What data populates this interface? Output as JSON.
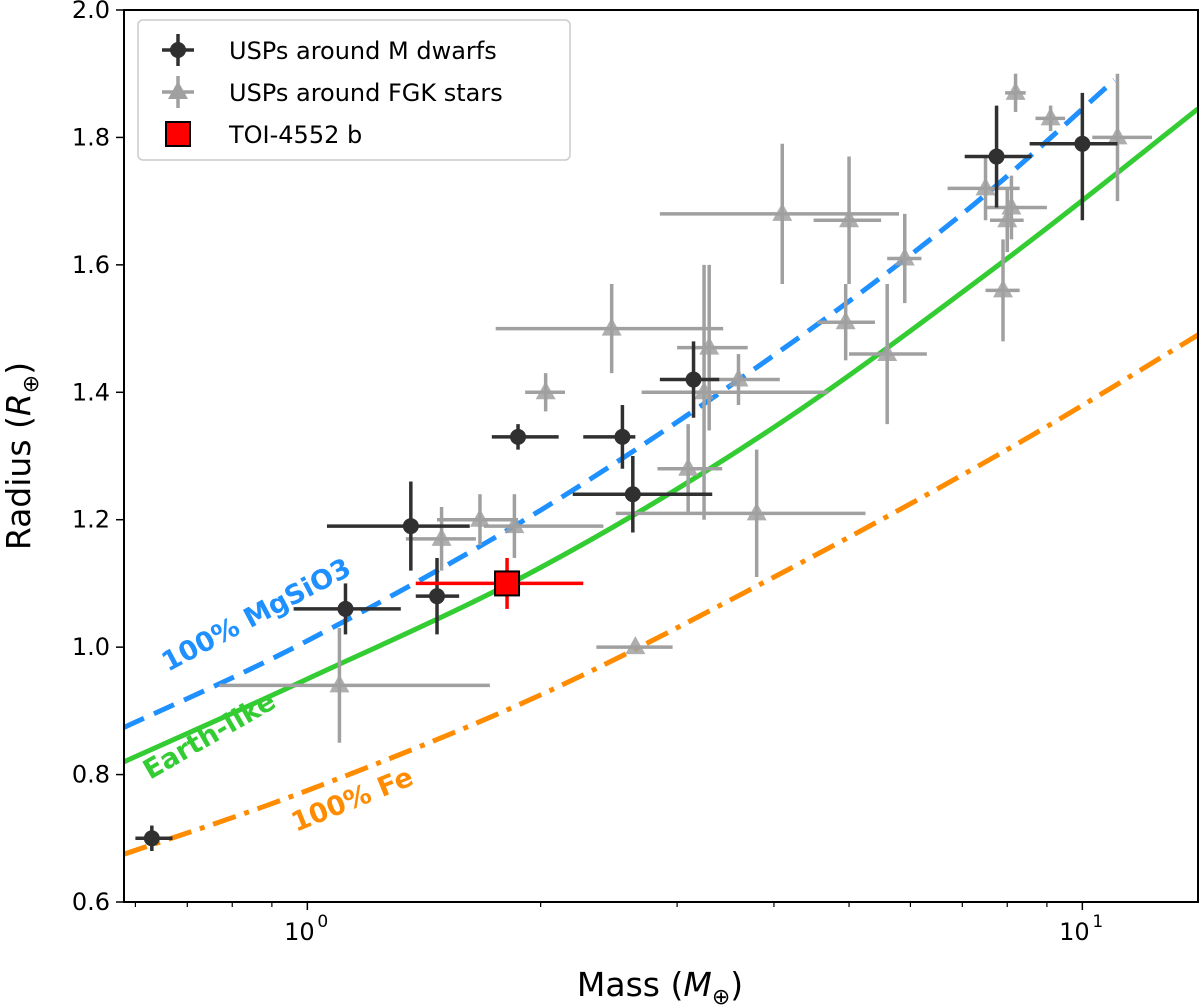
{
  "chart_data": {
    "type": "scatter",
    "title": "",
    "xlabel": "Mass",
    "xlabel_unit": "M",
    "ylabel": "Radius",
    "ylabel_unit": "R",
    "unit_subscript": "⊕",
    "xscale": "log",
    "xlim": [
      0.58,
      14.1
    ],
    "ylim": [
      0.6,
      2.0
    ],
    "x_ticks": [
      {
        "value": 1,
        "label_base": "10",
        "label_exp": "0"
      },
      {
        "value": 10,
        "label_base": "10",
        "label_exp": "1"
      }
    ],
    "y_ticks": [
      0.6,
      0.8,
      1.0,
      1.2,
      1.4,
      1.6,
      1.8,
      2.0
    ],
    "y_tick_labels": [
      "0.6",
      "0.8",
      "1.0",
      "1.2",
      "1.4",
      "1.6",
      "1.8",
      "2.0"
    ],
    "grid": false,
    "legend_position": "top-left",
    "legend": [
      {
        "label": "USPs around M dwarfs",
        "marker": "circle",
        "color": "#303030"
      },
      {
        "label": "USPs around FGK stars",
        "marker": "triangle",
        "color": "#a0a0a0"
      },
      {
        "label": "TOI-4552 b",
        "marker": "square",
        "color": "#ff0000"
      }
    ],
    "curves": [
      {
        "label": "100% MgSiO3",
        "color": "#1e90ff",
        "style": "dashed",
        "x": [
          0.58,
          1.0,
          2.0,
          4.0,
          7.0,
          11.0
        ],
        "y": [
          0.874,
          1.01,
          1.215,
          1.458,
          1.68,
          1.89
        ]
      },
      {
        "label": "Earth-like",
        "color": "#33cc33",
        "style": "solid",
        "x": [
          0.58,
          1.0,
          2.0,
          4.0,
          8.0,
          14.1
        ],
        "y": [
          0.82,
          0.95,
          1.125,
          1.345,
          1.61,
          1.845
        ]
      },
      {
        "label": "100% Fe",
        "color": "#ff8c00",
        "style": "dashdot",
        "x": [
          0.58,
          1.0,
          2.0,
          4.0,
          8.0,
          14.1
        ],
        "y": [
          0.675,
          0.775,
          0.925,
          1.11,
          1.31,
          1.49
        ]
      }
    ],
    "series": [
      {
        "name": "USPs around M dwarfs",
        "color": "#303030",
        "marker": "circle",
        "points": [
          {
            "x": 0.63,
            "y": 0.7,
            "xerr": [
              0.03,
              0.04
            ],
            "yerr": [
              0.02,
              0.02
            ]
          },
          {
            "x": 1.12,
            "y": 1.06,
            "xerr": [
              0.16,
              0.2
            ],
            "yerr": [
              0.04,
              0.04
            ]
          },
          {
            "x": 1.36,
            "y": 1.19,
            "xerr": [
              0.3,
              0.26
            ],
            "yerr": [
              0.07,
              0.07
            ]
          },
          {
            "x": 1.47,
            "y": 1.08,
            "xerr": [
              0.09,
              0.1
            ],
            "yerr": [
              0.06,
              0.06
            ]
          },
          {
            "x": 1.87,
            "y": 1.33,
            "xerr": [
              0.14,
              0.24
            ],
            "yerr": [
              0.02,
              0.02
            ]
          },
          {
            "x": 2.55,
            "y": 1.33,
            "xerr": [
              0.28,
              0.1
            ],
            "yerr": [
              0.05,
              0.05
            ]
          },
          {
            "x": 2.63,
            "y": 1.24,
            "xerr": [
              0.43,
              0.7
            ],
            "yerr": [
              0.06,
              0.06
            ]
          },
          {
            "x": 3.15,
            "y": 1.42,
            "xerr": [
              0.3,
              0.25
            ],
            "yerr": [
              0.06,
              0.06
            ]
          },
          {
            "x": 7.75,
            "y": 1.77,
            "xerr": [
              0.7,
              0.85
            ],
            "yerr": [
              0.08,
              0.08
            ]
          },
          {
            "x": 10.0,
            "y": 1.79,
            "xerr": [
              1.45,
              1.1
            ],
            "yerr": [
              0.12,
              0.08
            ]
          }
        ]
      },
      {
        "name": "USPs around FGK stars",
        "color": "#a0a0a0",
        "marker": "triangle",
        "points": [
          {
            "x": 1.1,
            "y": 0.94,
            "xerr": [
              0.33,
              0.62
            ],
            "yerr": [
              0.09,
              0.09
            ]
          },
          {
            "x": 1.49,
            "y": 1.17,
            "xerr": [
              0.15,
              0.16
            ],
            "yerr": [
              0.05,
              0.05
            ]
          },
          {
            "x": 1.67,
            "y": 1.2,
            "xerr": [
              0.2,
              0.2
            ],
            "yerr": [
              0.04,
              0.04
            ]
          },
          {
            "x": 1.85,
            "y": 1.19,
            "xerr": [
              0.16,
              0.56
            ],
            "yerr": [
              0.05,
              0.05
            ]
          },
          {
            "x": 2.03,
            "y": 1.4,
            "xerr": [
              0.12,
              0.12
            ],
            "yerr": [
              0.03,
              0.03
            ]
          },
          {
            "x": 2.47,
            "y": 1.5,
            "xerr": [
              0.72,
              0.97
            ],
            "yerr": [
              0.07,
              0.07
            ]
          },
          {
            "x": 2.65,
            "y": 1.0,
            "xerr": [
              0.29,
              0.31
            ],
            "yerr": [
              0.0,
              0.0
            ]
          },
          {
            "x": 3.1,
            "y": 1.28,
            "xerr": [
              0.27,
              0.33
            ],
            "yerr": [
              0.07,
              0.07
            ]
          },
          {
            "x": 3.25,
            "y": 1.4,
            "xerr": [
              0.55,
              1.45
            ],
            "yerr": [
              0.2,
              0.2
            ]
          },
          {
            "x": 3.3,
            "y": 1.47,
            "xerr": [
              0.3,
              0.4
            ],
            "yerr": [
              0.13,
              0.13
            ]
          },
          {
            "x": 3.6,
            "y": 1.42,
            "xerr": [
              0.3,
              0.47
            ],
            "yerr": [
              0.04,
              0.04
            ]
          },
          {
            "x": 3.8,
            "y": 1.21,
            "xerr": [
              1.3,
              1.45
            ],
            "yerr": [
              0.1,
              0.1
            ]
          },
          {
            "x": 4.1,
            "y": 1.68,
            "xerr": [
              1.25,
              1.7
            ],
            "yerr": [
              0.11,
              0.11
            ]
          },
          {
            "x": 4.95,
            "y": 1.51,
            "xerr": [
              0.4,
              0.45
            ],
            "yerr": [
              0.06,
              0.06
            ]
          },
          {
            "x": 5.0,
            "y": 1.67,
            "xerr": [
              0.5,
              0.5
            ],
            "yerr": [
              0.1,
              0.1
            ]
          },
          {
            "x": 5.6,
            "y": 1.46,
            "xerr": [
              0.6,
              0.7
            ],
            "yerr": [
              0.11,
              0.11
            ]
          },
          {
            "x": 5.9,
            "y": 1.61,
            "xerr": [
              0.3,
              0.3
            ],
            "yerr": [
              0.07,
              0.07
            ]
          },
          {
            "x": 7.5,
            "y": 1.72,
            "xerr": [
              0.8,
              0.8
            ],
            "yerr": [
              0.05,
              0.05
            ]
          },
          {
            "x": 7.9,
            "y": 1.56,
            "xerr": [
              0.4,
              0.4
            ],
            "yerr": [
              0.08,
              0.08
            ]
          },
          {
            "x": 8.0,
            "y": 1.67,
            "xerr": [
              0.4,
              0.4
            ],
            "yerr": [
              0.05,
              0.05
            ]
          },
          {
            "x": 8.1,
            "y": 1.69,
            "xerr": [
              0.6,
              0.9
            ],
            "yerr": [
              0.05,
              0.05
            ]
          },
          {
            "x": 8.2,
            "y": 1.87,
            "xerr": [
              0.25,
              0.25
            ],
            "yerr": [
              0.03,
              0.03
            ]
          },
          {
            "x": 9.1,
            "y": 1.83,
            "xerr": [
              0.4,
              0.4
            ],
            "yerr": [
              0.02,
              0.02
            ]
          },
          {
            "x": 11.1,
            "y": 1.8,
            "xerr": [
              0.8,
              1.2
            ],
            "yerr": [
              0.1,
              0.1
            ]
          }
        ]
      },
      {
        "name": "TOI-4552 b",
        "color": "#ff0000",
        "marker": "square",
        "points": [
          {
            "x": 1.81,
            "y": 1.1,
            "xerr": [
              0.43,
              0.46
            ],
            "yerr": [
              0.04,
              0.04
            ]
          }
        ]
      }
    ]
  }
}
